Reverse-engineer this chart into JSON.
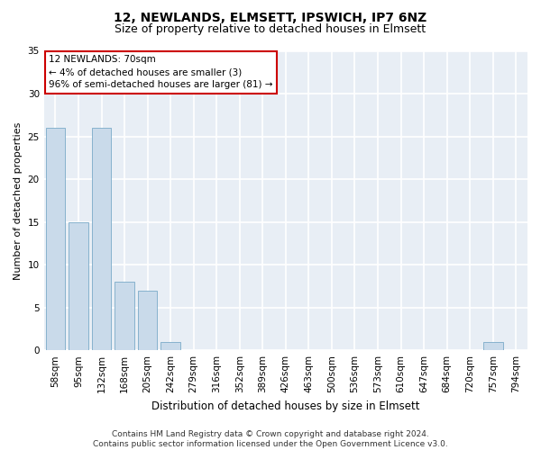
{
  "title1": "12, NEWLANDS, ELMSETT, IPSWICH, IP7 6NZ",
  "title2": "Size of property relative to detached houses in Elmsett",
  "xlabel": "Distribution of detached houses by size in Elmsett",
  "ylabel": "Number of detached properties",
  "categories": [
    "58sqm",
    "95sqm",
    "132sqm",
    "168sqm",
    "205sqm",
    "242sqm",
    "279sqm",
    "316sqm",
    "352sqm",
    "389sqm",
    "426sqm",
    "463sqm",
    "500sqm",
    "536sqm",
    "573sqm",
    "610sqm",
    "647sqm",
    "684sqm",
    "720sqm",
    "757sqm",
    "794sqm"
  ],
  "values": [
    26,
    15,
    26,
    8,
    7,
    1,
    0,
    0,
    0,
    0,
    0,
    0,
    0,
    0,
    0,
    0,
    0,
    0,
    0,
    1,
    0
  ],
  "bar_color": "#c9daea",
  "bar_edge_color": "#7aaac8",
  "ylim": [
    0,
    35
  ],
  "yticks": [
    0,
    5,
    10,
    15,
    20,
    25,
    30,
    35
  ],
  "annotation_text": "12 NEWLANDS: 70sqm\n← 4% of detached houses are smaller (3)\n96% of semi-detached houses are larger (81) →",
  "annotation_box_color": "#ffffff",
  "annotation_box_edge_color": "#cc0000",
  "footer_text": "Contains HM Land Registry data © Crown copyright and database right 2024.\nContains public sector information licensed under the Open Government Licence v3.0.",
  "fig_bg_color": "#ffffff",
  "axes_bg_color": "#e8eef5",
  "grid_color": "#ffffff",
  "title1_fontsize": 10,
  "title2_fontsize": 9,
  "xlabel_fontsize": 8.5,
  "ylabel_fontsize": 8,
  "tick_fontsize": 7.5,
  "annotation_fontsize": 7.5,
  "footer_fontsize": 6.5
}
